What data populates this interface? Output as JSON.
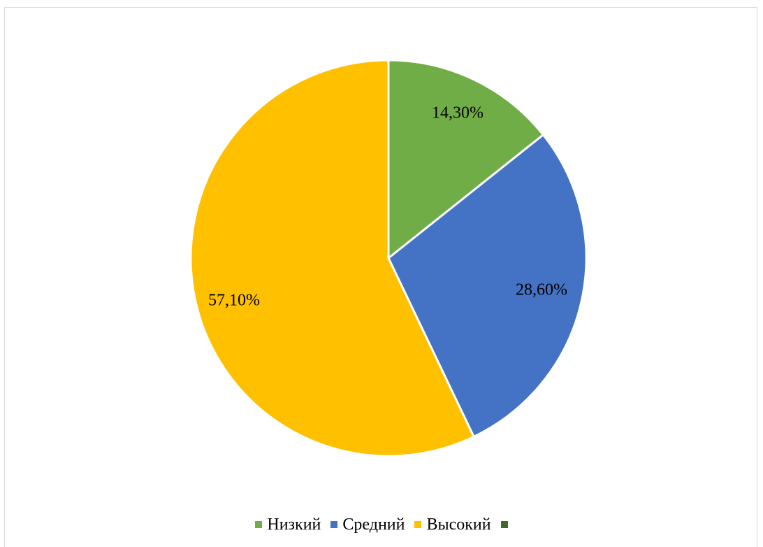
{
  "chart_data": {
    "type": "pie",
    "title": "",
    "categories": [
      "Низкий",
      "Средний",
      "Высокий",
      ""
    ],
    "values": [
      14.3,
      28.6,
      57.1,
      0
    ],
    "value_labels": [
      "14,30%",
      "28,60%",
      "57,10%",
      ""
    ],
    "colors": [
      "#70ad47",
      "#4472c4",
      "#ffc000",
      "#43682b"
    ],
    "start_angle_deg": 0,
    "direction": "clockwise",
    "legend_position": "bottom",
    "slice_border_color": "#ffffff"
  }
}
